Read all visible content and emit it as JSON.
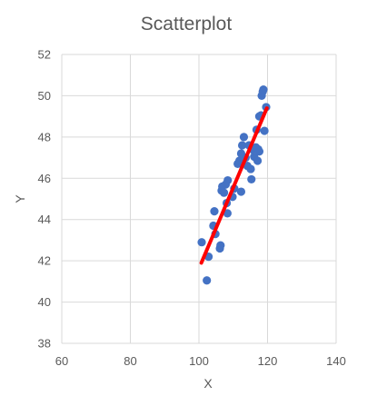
{
  "chart_data": {
    "type": "scatter",
    "title": "Scatterplot",
    "xlabel": "X",
    "ylabel": "Y",
    "xlim": [
      60,
      140
    ],
    "ylim": [
      38,
      52
    ],
    "xticks": [
      60,
      80,
      100,
      120,
      140
    ],
    "yticks": [
      38,
      40,
      42,
      44,
      46,
      48,
      50,
      52
    ],
    "xtick_labels": [
      "60",
      "80",
      "100",
      "120",
      "140"
    ],
    "ytick_labels": [
      "38",
      "40",
      "42",
      "44",
      "46",
      "48",
      "50",
      "52"
    ],
    "grid": true,
    "legend": "none",
    "series": [
      {
        "points": [
          [
            100.8,
            42.9
          ],
          [
            102.3,
            41.05
          ],
          [
            102.8,
            42.2
          ],
          [
            104.2,
            43.7
          ],
          [
            104.8,
            43.3
          ],
          [
            104.5,
            44.4
          ],
          [
            106.1,
            42.6
          ],
          [
            106.3,
            42.75
          ],
          [
            106.6,
            45.4
          ],
          [
            106.8,
            45.6
          ],
          [
            107.3,
            45.3
          ],
          [
            107.8,
            45.7
          ],
          [
            108.3,
            44.3
          ],
          [
            108.4,
            45.9
          ],
          [
            108.1,
            44.8
          ],
          [
            109.8,
            45.1
          ],
          [
            110.3,
            45.5
          ],
          [
            111.3,
            46.7
          ],
          [
            111.8,
            46.85
          ],
          [
            112.3,
            45.35
          ],
          [
            112.3,
            47.2
          ],
          [
            112.6,
            47.6
          ],
          [
            113.1,
            48.0
          ],
          [
            113.6,
            47.0
          ],
          [
            114.1,
            46.6
          ],
          [
            114.6,
            47.6
          ],
          [
            115.1,
            46.45
          ],
          [
            115.3,
            45.95
          ],
          [
            115.6,
            47.4
          ],
          [
            116.1,
            47.05
          ],
          [
            116.6,
            47.5
          ],
          [
            116.8,
            48.35
          ],
          [
            117.1,
            46.85
          ],
          [
            117.3,
            47.4
          ],
          [
            117.6,
            47.3
          ],
          [
            117.6,
            49.0
          ],
          [
            118.1,
            49.05
          ],
          [
            118.3,
            50.0
          ],
          [
            118.6,
            50.2
          ],
          [
            118.8,
            50.3
          ],
          [
            119.1,
            48.3
          ],
          [
            119.6,
            49.45
          ]
        ],
        "color": "#4472C4"
      }
    ],
    "trendline": {
      "x": [
        100.7,
        119.8
      ],
      "y": [
        41.9,
        49.4
      ],
      "color": "#FF0000"
    },
    "colors": {
      "marker": "#4472C4",
      "trendline": "#FF0000",
      "grid": "#D9D9D9",
      "text": "#595959"
    }
  }
}
